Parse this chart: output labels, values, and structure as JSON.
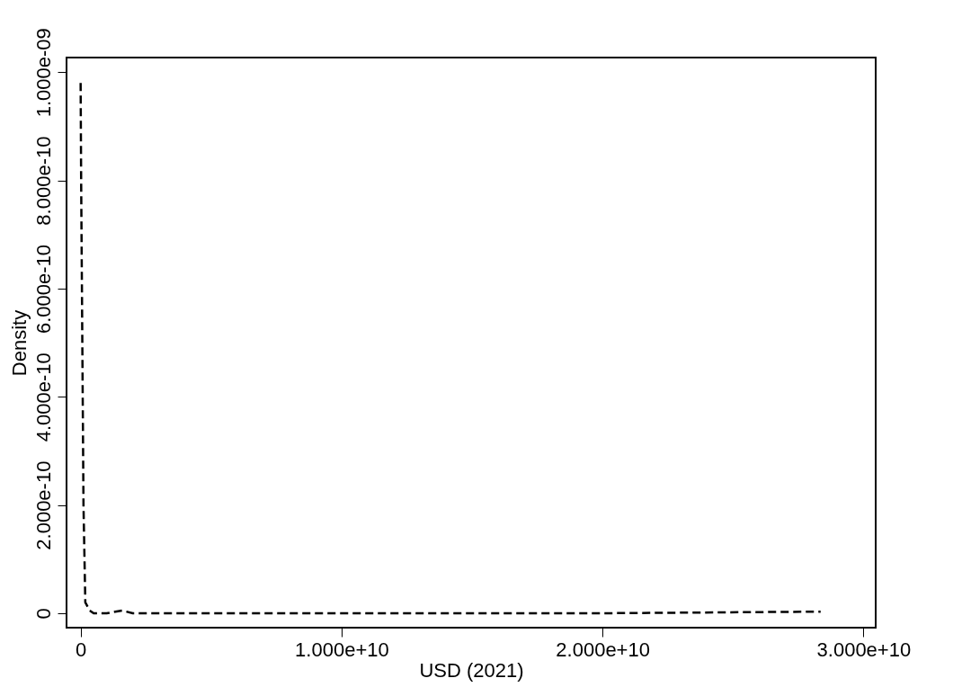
{
  "chart_data": {
    "type": "line",
    "xlabel": "USD (2021)",
    "ylabel": "Density",
    "x": [
      0,
      20000000,
      50000000,
      80000000,
      110000000,
      180000000,
      350000000,
      500000000,
      1000000000,
      1600000000,
      2000000000,
      5000000000,
      10000000000,
      20000000000,
      28360000000
    ],
    "series": [
      {
        "color": "#000000",
        "values": [
          9.8e-10,
          8e-10,
          6e-10,
          4e-10,
          2e-10,
          2e-11,
          5e-12,
          0,
          0,
          5e-12,
          0,
          0,
          0,
          0,
          3e-12
        ]
      }
    ],
    "xlim": [
      -540000000,
      30470000000
    ],
    "ylim": [
      -2.66e-11,
      1.027e-09
    ],
    "xticks": [
      0,
      {
        "value": 10000000000,
        "label": "1.000e+10"
      },
      {
        "value": 20000000000,
        "label": "2.000e+10"
      },
      {
        "value": 30000000000,
        "label": "3.000e+10"
      }
    ],
    "yticks": [
      0,
      {
        "value": 2e-10,
        "label": "2.000e-10"
      },
      {
        "value": 4e-10,
        "label": "4.000e-10"
      },
      {
        "value": 6e-10,
        "label": "6.000e-10"
      },
      {
        "value": 8e-10,
        "label": "8.000e-10"
      },
      {
        "value": 1e-09,
        "label": "1.000e-09"
      }
    ],
    "grid": false,
    "marker": "none",
    "line_style": "dashed"
  }
}
